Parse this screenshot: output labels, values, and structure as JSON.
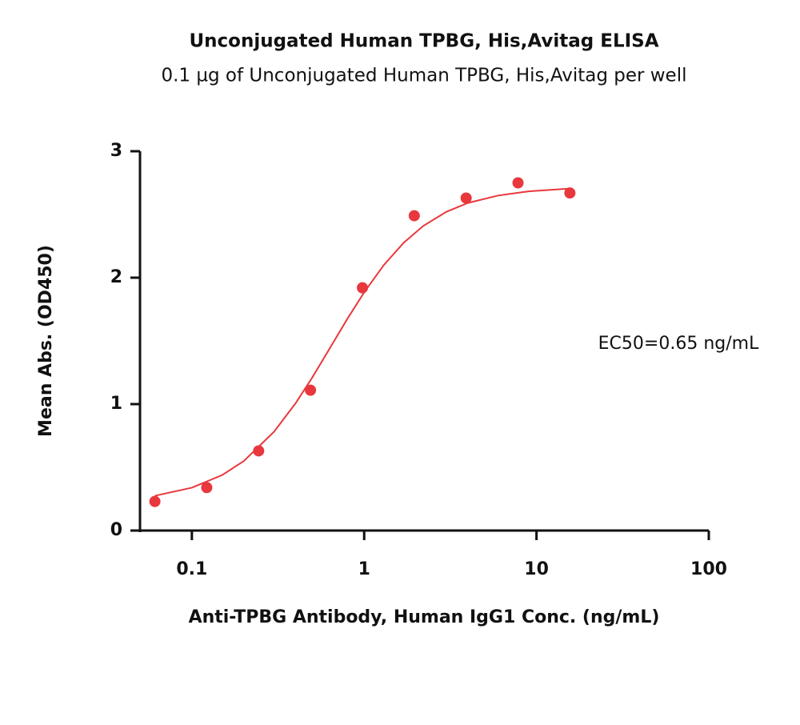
{
  "chart_data": {
    "type": "scatter",
    "title": "Unconjugated Human TPBG, His,Avitag ELISA",
    "subtitle": "0.1 µg of Unconjugated Human TPBG, His,Avitag per well",
    "x_label": "Anti-TPBG Antibody, Human IgG1 Conc. (ng/mL)",
    "y_label": "Mean Abs. (OD450)",
    "annotation": "EC50=0.65 ng/mL",
    "x_log": true,
    "color": "#e8383d",
    "x": [
      0.061,
      0.122,
      0.244,
      0.488,
      0.977,
      1.953,
      3.906,
      7.8125,
      15.625
    ],
    "values": [
      0.23,
      0.34,
      0.63,
      1.11,
      1.92,
      2.49,
      2.63,
      2.75,
      2.67
    ],
    "fit": {
      "x": [
        0.061,
        0.1,
        0.15,
        0.2,
        0.3,
        0.4,
        0.5,
        0.65,
        0.8,
        1,
        1.3,
        1.7,
        2.2,
        3,
        4,
        6,
        9,
        15.625
      ],
      "values": [
        0.275,
        0.339,
        0.439,
        0.549,
        0.782,
        1.007,
        1.211,
        1.47,
        1.676,
        1.884,
        2.1,
        2.278,
        2.409,
        2.521,
        2.591,
        2.65,
        2.683,
        2.705
      ]
    },
    "xlim": [
      0.05,
      100
    ],
    "xticks": [
      0.1,
      1,
      10,
      100
    ],
    "ylim": [
      0,
      3
    ],
    "yticks": [
      0,
      1,
      2,
      3
    ]
  }
}
